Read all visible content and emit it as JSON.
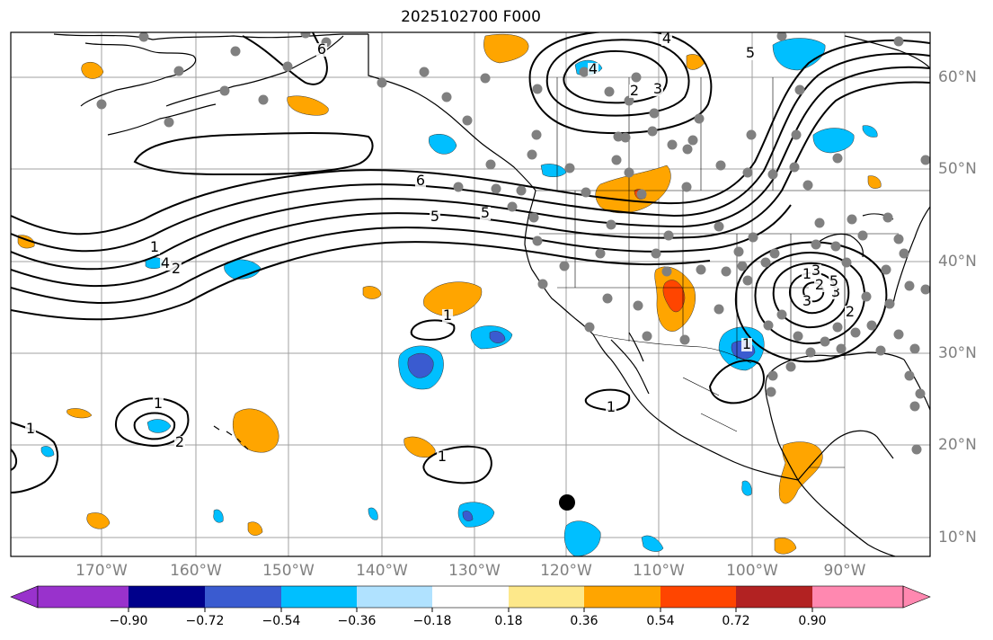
{
  "title": "2025102700 F000",
  "lon_labels": [
    "170°W",
    "160°W",
    "150°W",
    "140°W",
    "130°W",
    "120°W",
    "110°W",
    "100°W",
    "90°W"
  ],
  "lat_labels": [
    "60°N",
    "50°N",
    "40°N",
    "30°N",
    "20°N",
    "10°N"
  ],
  "colorbar": {
    "ticks": [
      "−0.90",
      "−0.72",
      "−0.54",
      "−0.36",
      "−0.18",
      "0.18",
      "0.36",
      "0.54",
      "0.72",
      "0.90"
    ],
    "colors": [
      "#9932cc",
      "#00008b",
      "#3a5bd0",
      "#00bfff",
      "#b0e2ff",
      "#ffffff",
      "#fde88a",
      "#ffa500",
      "#ff4500",
      "#b22222",
      "#ff88b0"
    ]
  },
  "contour_labels": [
    "6",
    "4",
    "5",
    "4",
    "2",
    "3",
    "5",
    "1",
    "6",
    "5",
    "3",
    "4",
    "2",
    "1",
    "1",
    "2",
    "1",
    "1",
    "1",
    "1",
    "2",
    "3",
    "3",
    "5",
    "2",
    "1"
  ],
  "colors": {
    "warm": "#ffa500",
    "hot": "#ff4500",
    "cool": "#00bfff",
    "cold": "#3a5bd0",
    "pale": "#b0e2ff",
    "station": "#808080"
  }
}
